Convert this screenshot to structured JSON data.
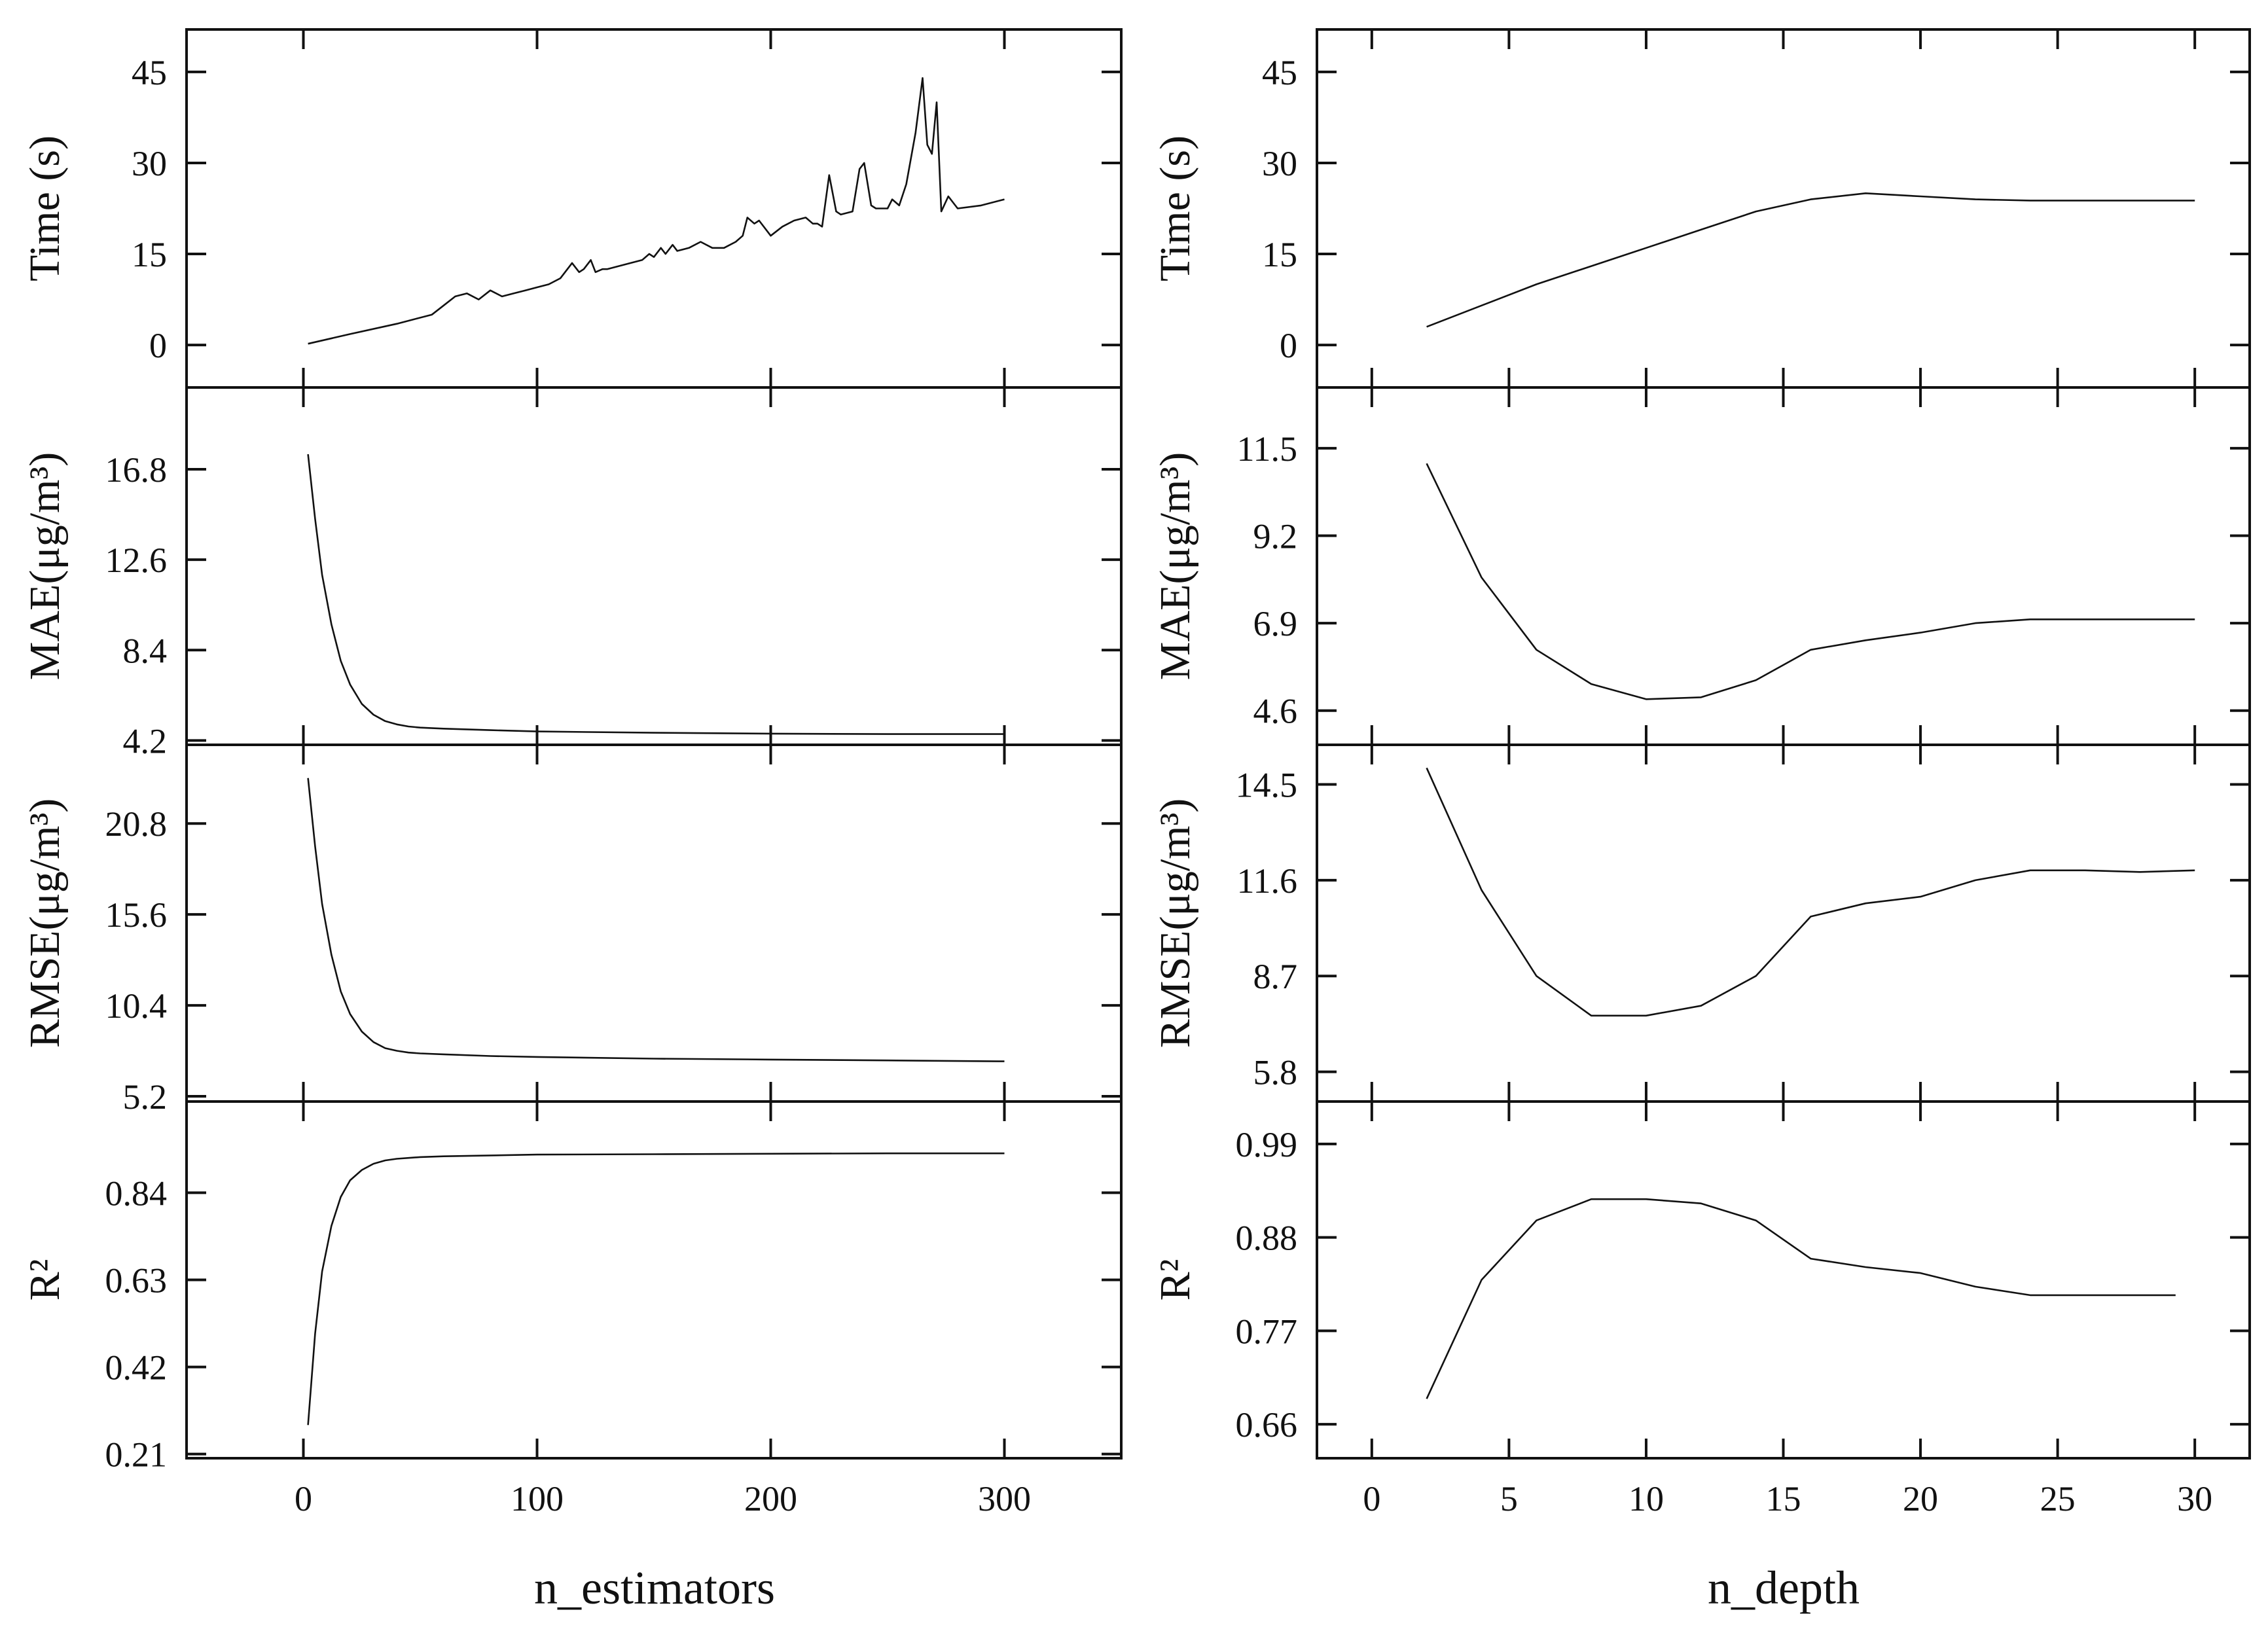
{
  "chart_data": [
    {
      "type": "line",
      "column": "left",
      "xlabel": "n_estimators",
      "xlim": [
        -50,
        350
      ],
      "xticks": [
        0,
        100,
        200,
        300
      ],
      "panels": [
        {
          "metric": "time",
          "ylabel": "Time (s)",
          "ylim": [
            -7,
            52
          ],
          "yticks": [
            "0",
            "15",
            "30",
            "45"
          ],
          "series": [
            {
              "name": "Time (s)",
              "x": [
                2,
                20,
                40,
                55,
                60,
                65,
                70,
                75,
                80,
                85,
                90,
                95,
                100,
                105,
                110,
                115,
                118,
                120,
                123,
                125,
                128,
                130,
                140,
                145,
                148,
                150,
                153,
                155,
                158,
                160,
                165,
                170,
                175,
                180,
                185,
                188,
                190,
                193,
                195,
                200,
                205,
                210,
                215,
                218,
                220,
                222,
                225,
                228,
                230,
                235,
                238,
                240,
                243,
                245,
                250,
                252,
                255,
                258,
                262,
                265,
                267,
                269,
                271,
                273,
                276,
                280,
                290,
                300
              ],
              "y": [
                0.2,
                1.8,
                3.5,
                5,
                6.5,
                8,
                8.5,
                7.5,
                9,
                8,
                8.5,
                9,
                9.5,
                10,
                11,
                13.5,
                12,
                12.5,
                14,
                12,
                12.5,
                12.5,
                13.5,
                14,
                15,
                14.5,
                16,
                15,
                16.5,
                15.5,
                16,
                17,
                16,
                16,
                17,
                18,
                21,
                20,
                20.5,
                18,
                19.5,
                20.5,
                21,
                20,
                20,
                19.5,
                28,
                22,
                21.5,
                22,
                29,
                30,
                23,
                22.5,
                22.5,
                24,
                23,
                26.5,
                35,
                44,
                33,
                31.5,
                40,
                22,
                24.5,
                22.5,
                23,
                24
              ]
            }
          ]
        },
        {
          "metric": "mae",
          "ylabel": "MAE(μg/m³)",
          "ylim": [
            4,
            20.6
          ],
          "yticks": [
            "4.2",
            "8.4",
            "12.6",
            "16.8"
          ],
          "series": [
            {
              "name": "MAE",
              "x": [
                2,
                5,
                8,
                12,
                16,
                20,
                25,
                30,
                35,
                40,
                45,
                50,
                60,
                80,
                100,
                150,
                200,
                250,
                300
              ],
              "y": [
                17.5,
                14.5,
                11.9,
                9.6,
                7.9,
                6.8,
                5.9,
                5.4,
                5.1,
                4.95,
                4.85,
                4.8,
                4.75,
                4.68,
                4.62,
                4.56,
                4.52,
                4.5,
                4.5
              ]
            }
          ]
        },
        {
          "metric": "rmse",
          "ylabel": "RMSE(μg/m³)",
          "ylim": [
            4.9,
            25.3
          ],
          "yticks": [
            "5.2",
            "10.4",
            "15.6",
            "20.8"
          ],
          "series": [
            {
              "name": "RMSE",
              "x": [
                2,
                5,
                8,
                12,
                16,
                20,
                25,
                30,
                35,
                40,
                45,
                50,
                60,
                80,
                100,
                150,
                200,
                250,
                300
              ],
              "y": [
                23.4,
                19.5,
                16.2,
                13.3,
                11.2,
                9.9,
                8.9,
                8.3,
                7.95,
                7.8,
                7.7,
                7.65,
                7.6,
                7.5,
                7.45,
                7.35,
                7.3,
                7.25,
                7.2
              ]
            }
          ]
        },
        {
          "metric": "r2",
          "ylabel": "R²",
          "ylim": [
            0.2,
            1.06
          ],
          "yticks": [
            "0.21",
            "0.42",
            "0.63",
            "0.84"
          ],
          "series": [
            {
              "name": "R²",
              "x": [
                2,
                5,
                8,
                12,
                16,
                20,
                25,
                30,
                35,
                40,
                45,
                50,
                60,
                80,
                100,
                150,
                200,
                250,
                300
              ],
              "y": [
                0.28,
                0.5,
                0.65,
                0.76,
                0.83,
                0.87,
                0.895,
                0.91,
                0.918,
                0.922,
                0.924,
                0.926,
                0.928,
                0.93,
                0.932,
                0.933,
                0.934,
                0.935,
                0.935
              ]
            }
          ]
        }
      ]
    },
    {
      "type": "line",
      "column": "right",
      "xlabel": "n_depth",
      "xlim": [
        -2,
        32
      ],
      "xticks": [
        0,
        5,
        10,
        15,
        20,
        25,
        30
      ],
      "panels": [
        {
          "metric": "time",
          "ylabel": "Time (s)",
          "ylim": [
            -7,
            52
          ],
          "yticks": [
            "0",
            "15",
            "30",
            "45"
          ],
          "series": [
            {
              "name": "Time (s)",
              "x": [
                2,
                4,
                6,
                8,
                10,
                12,
                14,
                16,
                18,
                20,
                22,
                24,
                26,
                28,
                30
              ],
              "y": [
                3,
                6.5,
                10,
                13,
                16,
                19,
                22,
                24,
                25,
                24.5,
                24,
                23.8,
                23.8,
                23.8,
                23.8
              ]
            }
          ]
        },
        {
          "metric": "mae",
          "ylabel": "MAE(μg/m³)",
          "ylim": [
            3.7,
            13.1
          ],
          "yticks": [
            "4.6",
            "6.9",
            "9.2",
            "11.5"
          ],
          "series": [
            {
              "name": "MAE",
              "x": [
                2,
                4,
                6,
                8,
                10,
                12,
                14,
                16,
                18,
                20,
                22,
                24,
                26,
                28,
                30
              ],
              "y": [
                11.1,
                8.1,
                6.2,
                5.3,
                4.9,
                4.95,
                5.4,
                6.2,
                6.45,
                6.65,
                6.9,
                7,
                7,
                7,
                7
              ]
            }
          ]
        },
        {
          "metric": "rmse",
          "ylabel": "RMSE(μg/m³)",
          "ylim": [
            4.9,
            15.7
          ],
          "yticks": [
            "5.8",
            "8.7",
            "11.6",
            "14.5"
          ],
          "series": [
            {
              "name": "RMSE",
              "x": [
                2,
                4,
                6,
                8,
                10,
                12,
                14,
                16,
                18,
                20,
                22,
                24,
                26,
                28,
                30
              ],
              "y": [
                15,
                11.3,
                8.7,
                7.5,
                7.5,
                7.8,
                8.7,
                10.5,
                10.9,
                11.1,
                11.6,
                11.9,
                11.9,
                11.85,
                11.9
              ]
            }
          ]
        },
        {
          "metric": "r2",
          "ylabel": "R²",
          "ylim": [
            0.62,
            1.04
          ],
          "yticks": [
            "0.66",
            "0.77",
            "0.88",
            "0.99"
          ],
          "series": [
            {
              "name": "R²",
              "x": [
                2,
                4,
                6,
                8,
                10,
                12,
                14,
                16,
                18,
                20,
                22,
                24,
                26,
                28,
                29.3
              ],
              "y": [
                0.69,
                0.83,
                0.9,
                0.925,
                0.925,
                0.92,
                0.9,
                0.855,
                0.845,
                0.838,
                0.822,
                0.812,
                0.812,
                0.812,
                0.812
              ]
            }
          ]
        }
      ]
    }
  ]
}
